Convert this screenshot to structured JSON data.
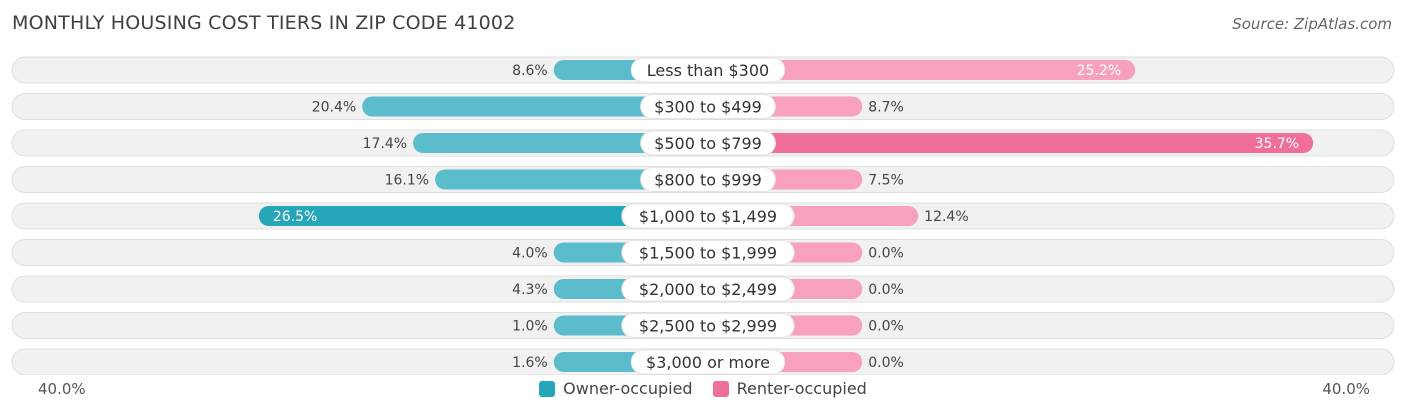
{
  "header": {
    "title": "MONTHLY HOUSING COST TIERS IN ZIP CODE 41002",
    "source": "Source: ZipAtlas.com"
  },
  "axis": {
    "left_label": "40.0%",
    "right_label": "40.0%"
  },
  "legend": {
    "owner": "Owner-occupied",
    "renter": "Renter-occupied"
  },
  "colors": {
    "owner": "#5bbccb",
    "owner_strong": "#26a6b9",
    "renter": "#f7a1bc",
    "renter_strong": "#f06f99",
    "row_bg": "#f1f1f1",
    "row_border": "#dedede"
  },
  "chart_data": {
    "type": "bar",
    "orientation": "horizontal-diverging",
    "title": "MONTHLY HOUSING COST TIERS IN ZIP CODE 41002",
    "xlim": [
      -40,
      40
    ],
    "categories": [
      "Less than $300",
      "$300 to $499",
      "$500 to $799",
      "$800 to $999",
      "$1,000 to $1,499",
      "$1,500 to $1,999",
      "$2,000 to $2,499",
      "$2,500 to $2,999",
      "$3,000 or more"
    ],
    "series": [
      {
        "name": "Owner-occupied",
        "values": [
          8.6,
          20.4,
          17.4,
          16.1,
          26.5,
          4.0,
          4.3,
          1.0,
          1.6
        ],
        "labels": [
          "8.6%",
          "20.4%",
          "17.4%",
          "16.1%",
          "26.5%",
          "4.0%",
          "4.3%",
          "1.0%",
          "1.6%"
        ]
      },
      {
        "name": "Renter-occupied",
        "values": [
          25.2,
          8.7,
          35.7,
          7.5,
          12.4,
          0.0,
          0.0,
          0.0,
          0.0
        ],
        "labels": [
          "25.2%",
          "8.7%",
          "35.7%",
          "7.5%",
          "12.4%",
          "0.0%",
          "0.0%",
          "0.0%",
          "0.0%"
        ]
      }
    ],
    "legend_position": "bottom-center"
  }
}
